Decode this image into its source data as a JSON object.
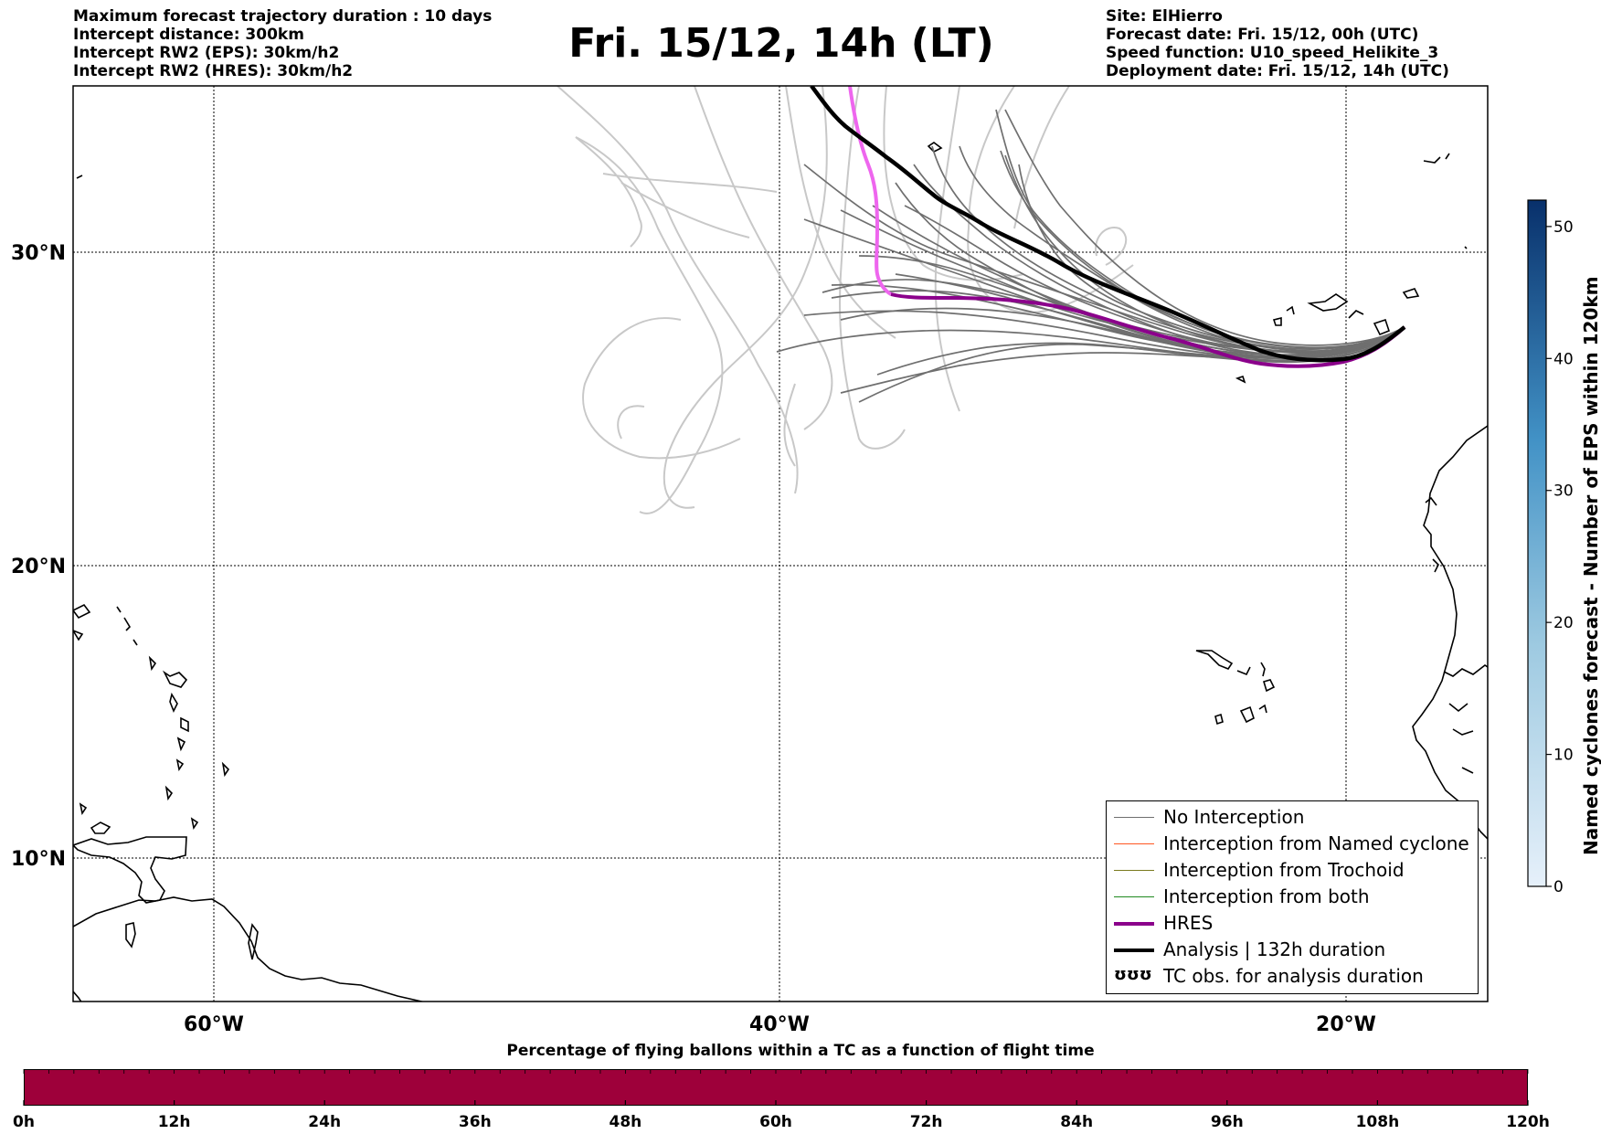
{
  "header_left": [
    "Maximum forecast trajectory duration : 10 days",
    "Intercept distance: 300km",
    "Intercept RW2 (EPS):  30km/h2",
    "Intercept RW2 (HRES): 30km/h2"
  ],
  "title": "Fri. 15/12, 14h (LT)",
  "header_right": [
    "Site: ElHierro",
    "Forecast date: Fri. 15/12, 00h (UTC)",
    "Speed function: U10_speed_Helikite_3",
    "Deployment date: Fri. 15/12, 14h (UTC)"
  ],
  "map": {
    "lat_labels": [
      "30°N",
      "20°N",
      "10°N"
    ],
    "lon_labels": [
      "60°W",
      "40°W",
      "20°W"
    ],
    "colors": {
      "no_interception": "#6f6f6f",
      "light_traj": "#c8c8c8",
      "hres": "#8b008b",
      "hres_light": "#ee66ee",
      "analysis": "#000000",
      "named": "#ff5722",
      "trochoid": "#7a7a1e",
      "both": "#1f8a1f"
    }
  },
  "legend": {
    "items": [
      "No Interception",
      "Interception from Named cyclone",
      "Interception from Trochoid",
      "Interception from both",
      "HRES",
      "Analysis | 132h duration",
      "TC obs. for analysis duration"
    ],
    "tc_symbol": "ʊʊʊ"
  },
  "colorbar": {
    "label": "Named cyclones forecast - Number of EPS within 120km",
    "ticks": [
      "0",
      "10",
      "20",
      "30",
      "40",
      "50"
    ],
    "min": 0,
    "max": 52,
    "color_low": "#e6f0fa",
    "color_high": "#08306b"
  },
  "bottom": {
    "title": "Percentage of flying ballons within a TC as a function of flight time",
    "ticks": [
      "0h",
      "12h",
      "24h",
      "36h",
      "48h",
      "60h",
      "72h",
      "84h",
      "96h",
      "108h",
      "120h"
    ],
    "bar_color": "#9e003a"
  }
}
